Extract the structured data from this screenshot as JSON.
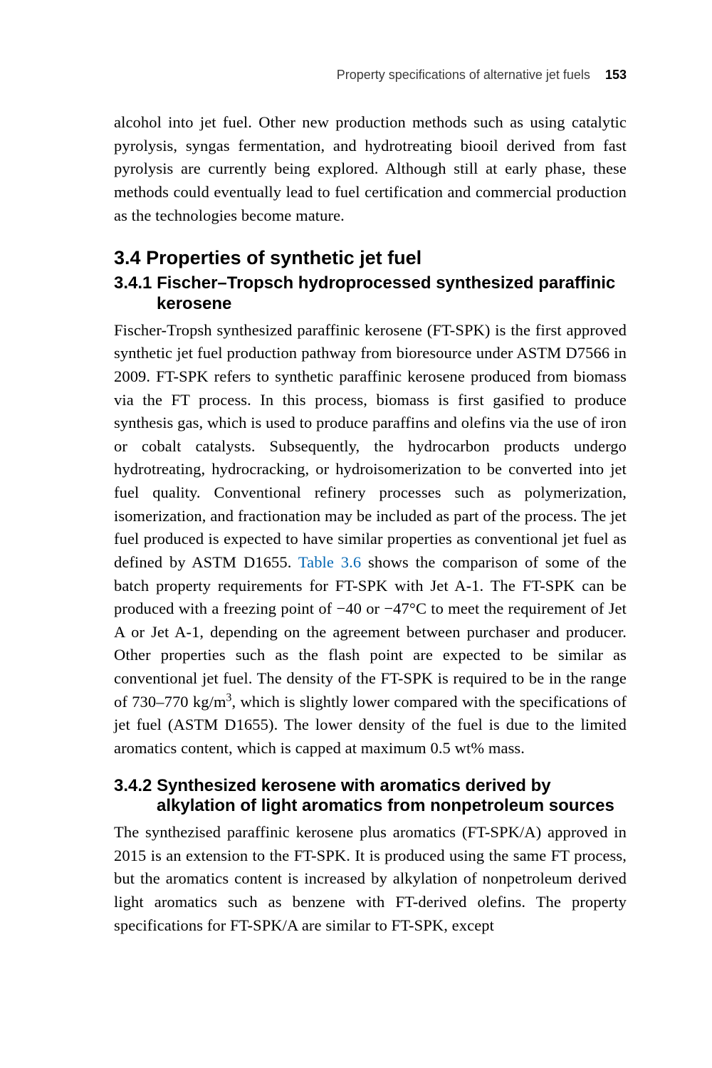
{
  "runningHead": {
    "title": "Property specifications of alternative jet fuels",
    "pageNumber": "153"
  },
  "intro": {
    "text": "alcohol into jet fuel. Other new production methods such as using catalytic pyrolysis, syngas fermentation, and hydrotreating biooil derived from fast pyrolysis are currently being explored. Although still at early phase, these methods could eventually lead to fuel certification and commercial production as the technologies become mature."
  },
  "section34": {
    "number": "3.4",
    "title": "Properties of synthetic jet fuel"
  },
  "section341": {
    "number": "3.4.1",
    "title": "Fischer–Tropsch hydroprocessed synthesized paraffinic kerosene",
    "para_a": "Fischer-Tropsh synthesized paraffinic kerosene (FT-SPK) is the first approved synthetic jet fuel production pathway from bioresource under ASTM D7566 in 2009. FT-SPK refers to synthetic paraffinic kerosene produced from biomass via the FT process. In this process, biomass is first gasified to produce synthesis gas, which is used to produce paraffins and olefins via the use of iron or cobalt catalysts. Subsequently, the hydrocarbon products undergo hydrotreating, hydrocracking, or hydroisomerization to be converted into jet fuel quality. Conventional refinery processes such as polymerization, isomerization, and fractionation may be included as part of the process. The jet fuel produced is expected to have similar properties as conventional jet fuel as defined by ASTM D1655. ",
    "table_ref": "Table 3.6",
    "para_b": " shows the comparison of some of the batch property requirements for FT-SPK with Jet A-1. The FT-SPK can be produced with a freezing point of −40 or −47°C to meet the requirement of Jet A or Jet A-1, depending on the agreement between purchaser and producer. Other properties such as the flash point are expected to be similar as conventional jet fuel. The density of the FT-SPK is required to be in the range of 730–770 kg/m",
    "para_c": ", which is slightly lower compared with the specifications of jet fuel (ASTM D1655). The lower density of the fuel is due to the limited aromatics content, which is capped at maximum 0.5 wt% mass."
  },
  "section342": {
    "number": "3.4.2",
    "title": "Synthesized kerosene with aromatics derived by alkylation of light aromatics from nonpetroleum sources",
    "para": "The synthezised paraffinic kerosene plus aromatics (FT-SPK/A) approved in 2015 is an extension to the FT-SPK. It is produced using the same FT process, but the aromatics content is increased by alkylation of nonpetroleum derived light aromatics such as benzene with FT-derived olefins. The property specifications for FT-SPK/A are similar to FT-SPK, except"
  }
}
